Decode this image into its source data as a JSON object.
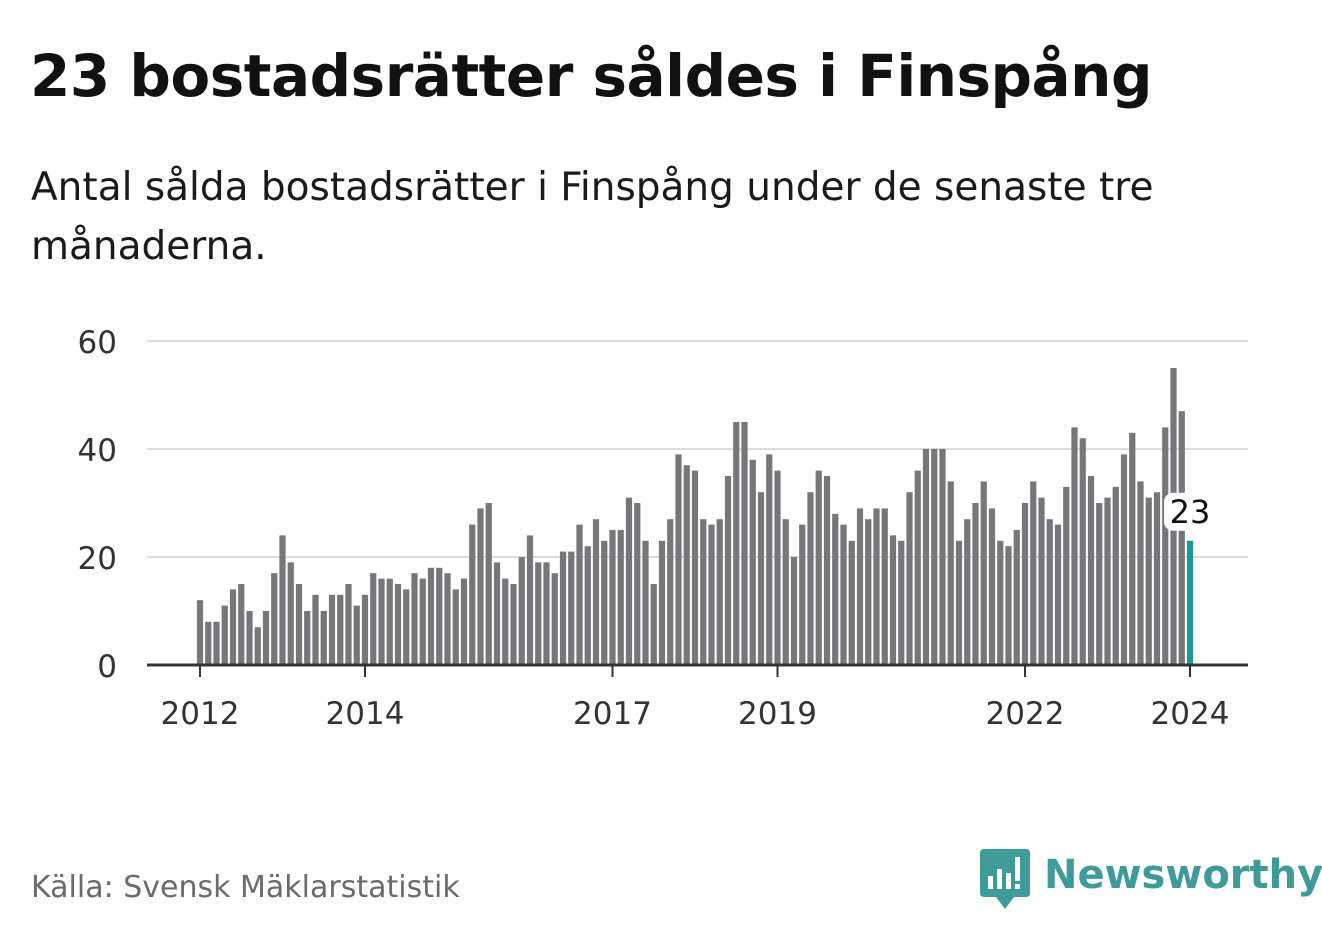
{
  "header": {
    "title": "23 bostadsrätter såldes i Finspång",
    "subtitle": "Antal sålda bostadsrätter i Finspång under de senaste tre månaderna."
  },
  "footer": {
    "source": "Källa: Svensk Mäklarstatistik",
    "brand": "Newsworthy"
  },
  "colors": {
    "bar": "#76767b",
    "highlight": "#1a9a95",
    "grid": "#dcdcdc",
    "axis": "#333333",
    "brand": "#3f9a9a"
  },
  "chart_data": {
    "type": "bar",
    "title": "23 bostadsrätter såldes i Finspång",
    "subtitle": "Antal sålda bostadsrätter i Finspång under de senaste tre månaderna.",
    "xlabel": "",
    "ylabel": "",
    "ylim": [
      0,
      60
    ],
    "yticks": [
      0,
      20,
      40,
      60
    ],
    "grid": true,
    "xticks": [
      {
        "label": "2012",
        "index": 0
      },
      {
        "label": "2014",
        "index": 20
      },
      {
        "label": "2017",
        "index": 50
      },
      {
        "label": "2019",
        "index": 70
      },
      {
        "label": "2022",
        "index": 100
      },
      {
        "label": "2024",
        "index": 120
      }
    ],
    "highlight": {
      "index": 120,
      "label": "23"
    },
    "values": [
      12,
      8,
      8,
      11,
      14,
      15,
      10,
      7,
      10,
      17,
      24,
      19,
      15,
      10,
      13,
      10,
      13,
      13,
      15,
      11,
      13,
      17,
      16,
      16,
      15,
      14,
      17,
      16,
      18,
      18,
      17,
      14,
      16,
      26,
      29,
      30,
      19,
      16,
      15,
      20,
      24,
      19,
      19,
      17,
      21,
      21,
      26,
      22,
      27,
      23,
      25,
      25,
      31,
      30,
      23,
      15,
      23,
      27,
      39,
      37,
      36,
      27,
      26,
      27,
      35,
      45,
      45,
      38,
      32,
      39,
      36,
      27,
      20,
      26,
      32,
      36,
      35,
      28,
      26,
      23,
      29,
      27,
      29,
      29,
      24,
      23,
      32,
      36,
      40,
      40,
      40,
      34,
      23,
      27,
      30,
      34,
      29,
      23,
      22,
      25,
      30,
      34,
      31,
      27,
      26,
      33,
      44,
      42,
      35,
      30,
      31,
      33,
      39,
      43,
      34,
      31,
      32,
      44,
      55,
      47,
      23
    ]
  }
}
